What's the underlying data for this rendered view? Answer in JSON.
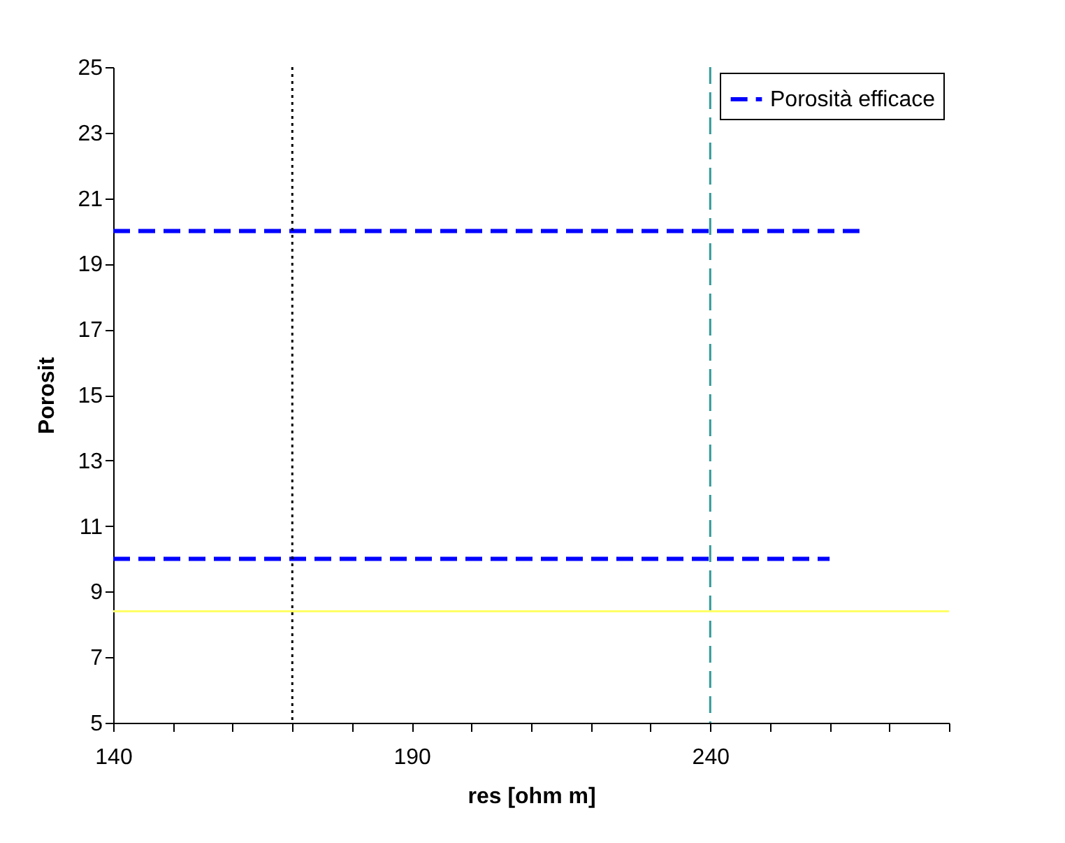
{
  "chart_data": {
    "type": "line",
    "xlabel": "res [ohm m]",
    "ylabel": "Porosit",
    "x": [
      140,
      265,
      null,
      140,
      260
    ],
    "series": [
      {
        "name": "Porosità efficace",
        "color": "#0000ff",
        "values": [
          20,
          20,
          null,
          10,
          10
        ],
        "line_style": "dashed"
      }
    ],
    "xlim": [
      140,
      280
    ],
    "xticks": [
      140,
      {
        "value": 150,
        "label": null
      },
      {
        "value": 160,
        "label": null
      },
      {
        "value": 170,
        "label": null
      },
      {
        "value": 180,
        "label": null
      },
      190,
      {
        "value": 200,
        "label": null
      },
      {
        "value": 210,
        "label": null
      },
      {
        "value": 220,
        "label": null
      },
      {
        "value": 230,
        "label": null
      },
      240,
      {
        "value": 250,
        "label": null
      },
      {
        "value": 260,
        "label": null
      },
      {
        "value": 270,
        "label": null
      },
      {
        "value": 280,
        "label": null
      }
    ],
    "ylim": [
      5,
      25
    ],
    "yticks": [
      5,
      7,
      9,
      11,
      13,
      15,
      17,
      19,
      21,
      23,
      25
    ],
    "ref_lines": [
      {
        "axis": "x",
        "value": 170,
        "color": "#000000",
        "line_style": "dotted"
      },
      {
        "axis": "x",
        "value": 240,
        "color": "#339999",
        "line_style": "dashed"
      },
      {
        "axis": "y",
        "value": 8.4,
        "color": "#ffff66",
        "line_style": "solid"
      }
    ],
    "grid": false,
    "legend": "top right",
    "marker": "none"
  }
}
